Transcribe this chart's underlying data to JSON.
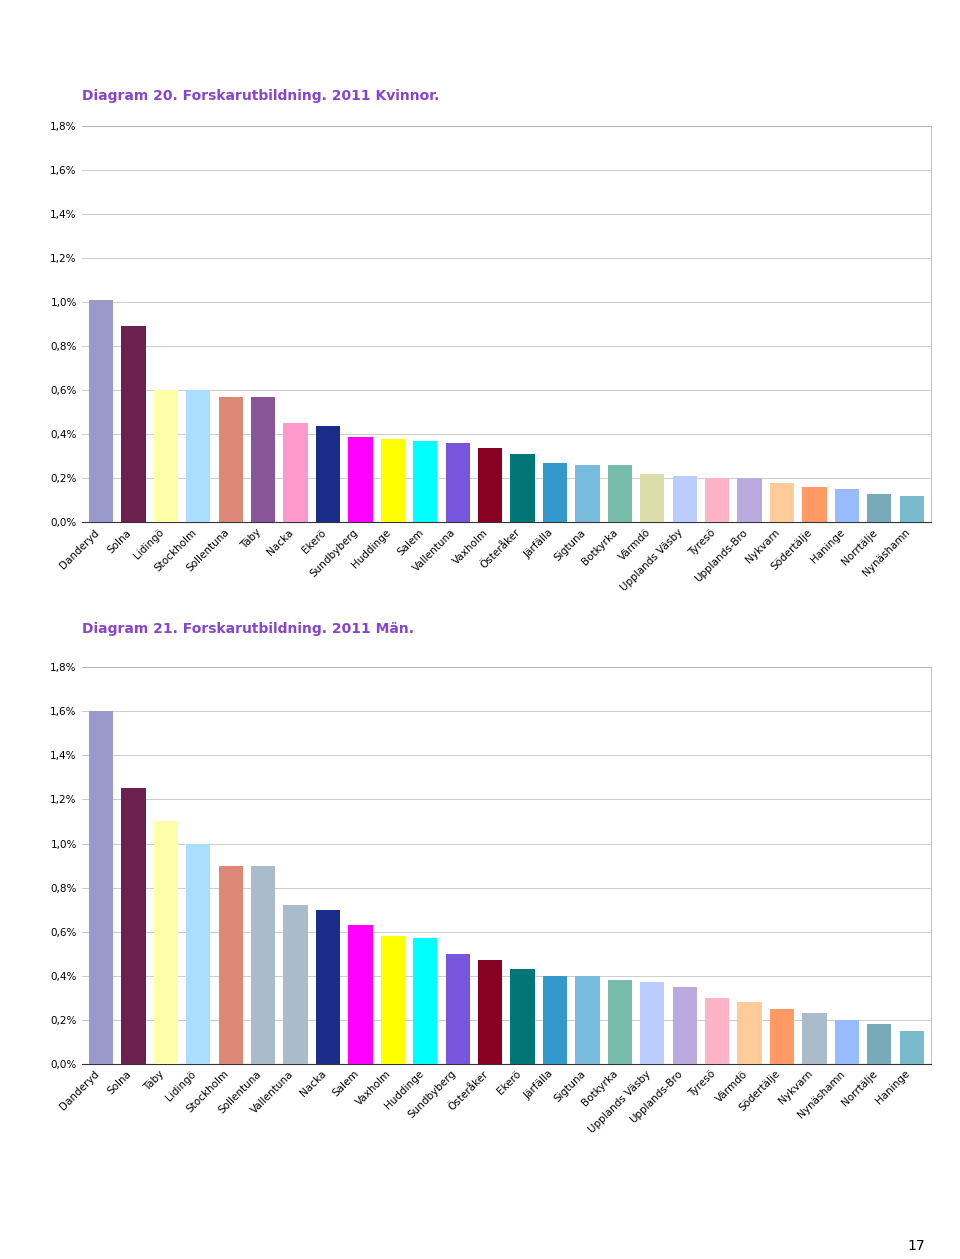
{
  "title1": "Diagram 20. Forskarutbildning. 2011 Kvinnor.",
  "title2": "Diagram 21. Forskarutbildning. 2011 Män.",
  "title_color": "#8844CC",
  "chart1": {
    "categories": [
      "Danderyd",
      "Solna",
      "Lidingö",
      "Stockholm",
      "Sollentuna",
      "Täby",
      "Nacka",
      "Ekerö",
      "Sundbyberg",
      "Huddinge",
      "Salem",
      "Vallentuna",
      "Vaxholm",
      "Österåker",
      "Järfälla",
      "Sigtuna",
      "Botkyrka",
      "Värmdö",
      "Upplands Väsby",
      "Tyresö",
      "Upplands-Bro",
      "Nykvarn",
      "Södertälje",
      "Haninge",
      "Norrtälje",
      "Nynäshamn"
    ],
    "values": [
      0.0101,
      0.0089,
      0.006,
      0.006,
      0.0057,
      0.0057,
      0.0045,
      0.0044,
      0.0039,
      0.0038,
      0.0037,
      0.0036,
      0.0034,
      0.0031,
      0.0027,
      0.0026,
      0.0026,
      0.0022,
      0.0021,
      0.002,
      0.002,
      0.0018,
      0.0016,
      0.0015,
      0.0013,
      0.0012
    ],
    "colors": [
      "#9999CC",
      "#6B2050",
      "#FFFFAA",
      "#AADDFF",
      "#DD8877",
      "#885599",
      "#FF99CC",
      "#1A2D88",
      "#FF00FF",
      "#FFFF00",
      "#00FFFF",
      "#7755DD",
      "#880022",
      "#007777",
      "#3399CC",
      "#77BBDD",
      "#77BBAA",
      "#DDDDAA",
      "#BBCCFF",
      "#FFB3C6",
      "#BBAADD",
      "#FFCC99",
      "#FF9966",
      "#99BBFF",
      "#77AABB",
      "#77BBCC"
    ]
  },
  "chart2": {
    "categories": [
      "Danderyd",
      "Solna",
      "Täby",
      "Lidingö",
      "Stockholm",
      "Sollentuna",
      "Vallentuna",
      "Nacka",
      "Salem",
      "Vaxholm",
      "Huddinge",
      "Sundbyberg",
      "Österåker",
      "Ekerö",
      "Järfälla",
      "Sigtuna",
      "Botkyrka",
      "Upplands Väsby",
      "Upplands-Bro",
      "Tyresö",
      "Värmdö",
      "Södertälje",
      "Nykvarn",
      "Nynäshamn",
      "Norrtälje",
      "Haninge"
    ],
    "values": [
      0.016,
      0.0125,
      0.011,
      0.01,
      0.009,
      0.009,
      0.0072,
      0.007,
      0.0063,
      0.0058,
      0.0057,
      0.005,
      0.0047,
      0.0043,
      0.004,
      0.004,
      0.0038,
      0.0037,
      0.0035,
      0.003,
      0.0028,
      0.0025,
      0.0023,
      0.002,
      0.0018,
      0.0015
    ],
    "colors": [
      "#9999CC",
      "#6B2050",
      "#FFFFAA",
      "#AADDFF",
      "#DD8877",
      "#AABBCC",
      "#AABBCC",
      "#1A2D88",
      "#FF00FF",
      "#FFFF00",
      "#00FFFF",
      "#7755DD",
      "#880022",
      "#007777",
      "#3399CC",
      "#77BBDD",
      "#77BBAA",
      "#BBCCFF",
      "#BBAADD",
      "#FFB3C6",
      "#FFCC99",
      "#FF9966",
      "#AABBCC",
      "#99BBFF",
      "#77AABB",
      "#77BBCC"
    ]
  },
  "yticks": [
    0.0,
    0.002,
    0.004,
    0.006,
    0.008,
    0.01,
    0.012,
    0.014,
    0.016,
    0.018
  ],
  "ylim": [
    0,
    0.018
  ],
  "background_color": "#FFFFFF",
  "grid_color": "#CCCCCC",
  "title_fontsize": 10,
  "tick_fontsize": 7.5,
  "footer_color": "#BB88EE"
}
